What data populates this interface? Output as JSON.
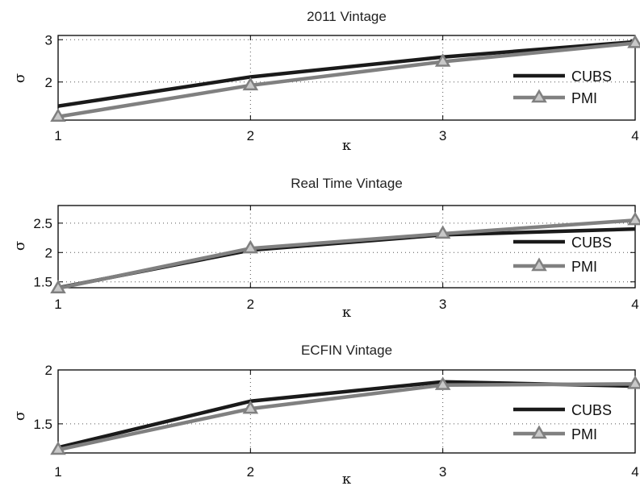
{
  "chart_data": [
    {
      "type": "line",
      "title": "2011 Vintage",
      "xlabel": "κ",
      "ylabel": "σ",
      "x": [
        1,
        2,
        3,
        4
      ],
      "xlim": [
        1,
        4
      ],
      "ylim": [
        1.1,
        3.1
      ],
      "yticks": [
        2,
        3
      ],
      "yticklabels": [
        "2",
        "3"
      ],
      "grid": true,
      "legend_position": "right",
      "series": [
        {
          "name": "CUBS",
          "values": [
            1.43,
            2.12,
            2.59,
            2.95
          ],
          "color": "#1a1a1a",
          "marker": "none"
        },
        {
          "name": "PMI",
          "values": [
            1.18,
            1.92,
            2.48,
            2.92
          ],
          "color": "#808080",
          "marker": "triangle"
        }
      ]
    },
    {
      "type": "line",
      "title": "Real Time Vintage",
      "xlabel": "κ",
      "ylabel": "σ",
      "x": [
        1,
        2,
        3,
        4
      ],
      "xlim": [
        1,
        4
      ],
      "ylim": [
        1.4,
        2.8
      ],
      "yticks": [
        1.5,
        2,
        2.5
      ],
      "yticklabels": [
        "1.5",
        "2",
        "2.5"
      ],
      "grid": true,
      "legend_position": "right",
      "series": [
        {
          "name": "CUBS",
          "values": [
            1.4,
            2.04,
            2.3,
            2.4
          ],
          "color": "#1a1a1a",
          "marker": "none"
        },
        {
          "name": "PMI",
          "values": [
            1.39,
            2.07,
            2.32,
            2.55
          ],
          "color": "#808080",
          "marker": "triangle"
        }
      ]
    },
    {
      "type": "line",
      "title": "ECFIN Vintage",
      "xlabel": "κ",
      "ylabel": "σ",
      "x": [
        1,
        2,
        3,
        4
      ],
      "xlim": [
        1,
        4
      ],
      "ylim": [
        1.23,
        2.0
      ],
      "yticks": [
        1.5,
        2
      ],
      "yticklabels": [
        "1.5",
        "2"
      ],
      "grid": true,
      "legend_position": "right",
      "series": [
        {
          "name": "CUBS",
          "values": [
            1.28,
            1.71,
            1.89,
            1.85
          ],
          "color": "#1a1a1a",
          "marker": "none"
        },
        {
          "name": "PMI",
          "values": [
            1.26,
            1.64,
            1.86,
            1.87
          ],
          "color": "#808080",
          "marker": "triangle"
        }
      ]
    }
  ]
}
